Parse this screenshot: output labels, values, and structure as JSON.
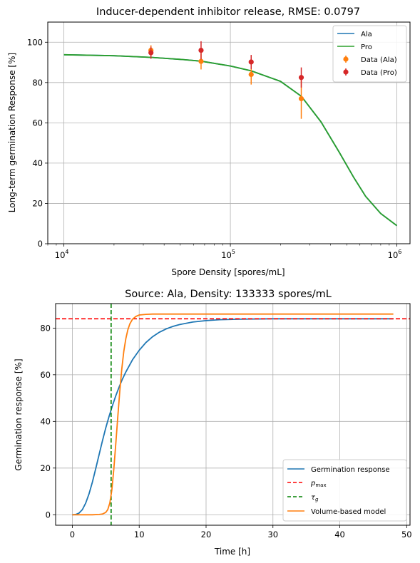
{
  "chart_data": [
    {
      "type": "line",
      "title": "Inducer-dependent inhibitor release, RMSE: 0.0797",
      "xlabel": "Spore Density [spores/mL]",
      "ylabel": "Long-term germination Response [%]",
      "xscale": "log",
      "xlim": [
        8000,
        1200000
      ],
      "ylim": [
        0,
        110
      ],
      "yticks": [
        "0",
        "20",
        "40",
        "60",
        "80",
        "100"
      ],
      "xticks": [
        {
          "value": 10000,
          "base": "10",
          "exp": "4"
        },
        {
          "value": 100000,
          "base": "10",
          "exp": "5"
        },
        {
          "value": 1000000,
          "base": "10",
          "exp": "6"
        }
      ],
      "grid": true,
      "legend_position": "top-right",
      "series": [
        {
          "name": "Ala",
          "kind": "line",
          "color": "#1f77b4",
          "x": [
            10000,
            20000,
            33333,
            50000,
            66667,
            100000,
            133333,
            200000,
            266667,
            350000,
            450000,
            550000,
            650000,
            800000,
            1000000
          ],
          "y": [
            93.8,
            93.3,
            92.5,
            91.5,
            90.6,
            88.2,
            85.8,
            80.6,
            73.2,
            60.5,
            45.5,
            33.0,
            23.5,
            15.0,
            9.0
          ]
        },
        {
          "name": "Pro",
          "kind": "line",
          "color": "#2ca02c",
          "x": [
            10000,
            20000,
            33333,
            50000,
            66667,
            100000,
            133333,
            200000,
            266667,
            350000,
            450000,
            550000,
            650000,
            800000,
            1000000
          ],
          "y": [
            93.8,
            93.3,
            92.5,
            91.5,
            90.6,
            88.2,
            85.8,
            80.6,
            73.2,
            60.5,
            45.5,
            33.0,
            23.5,
            15.0,
            9.0
          ]
        },
        {
          "name": "Data (Ala)",
          "kind": "errorbar",
          "color": "#ff7f0e",
          "x": [
            33333,
            66667,
            133333,
            266667
          ],
          "y": [
            96.0,
            90.5,
            84.0,
            72.0
          ],
          "err": [
            2.5,
            4.0,
            5.0,
            10.0
          ]
        },
        {
          "name": "Data (Pro)",
          "kind": "errorbar",
          "color": "#d62728",
          "x": [
            33333,
            66667,
            133333,
            266667
          ],
          "y": [
            94.8,
            96.0,
            90.2,
            82.5
          ],
          "err": [
            3.0,
            4.5,
            3.5,
            5.0
          ]
        }
      ]
    },
    {
      "type": "line",
      "title": "Source: Ala, Density: 133333 spores/mL",
      "xlabel": "Time [h]",
      "ylabel": "Germination response [%]",
      "xlim": [
        -2.5,
        50.5
      ],
      "ylim": [
        -4.5,
        90.5
      ],
      "xticks": [
        "0",
        "10",
        "20",
        "30",
        "40",
        "50"
      ],
      "yticks": [
        "0",
        "20",
        "40",
        "60",
        "80"
      ],
      "grid": true,
      "legend_position": "bottom-right",
      "series": [
        {
          "name": "Germination response",
          "kind": "line",
          "color": "#1f77b4",
          "x": [
            0,
            0.5,
            1,
            1.5,
            2,
            2.5,
            3,
            3.5,
            4,
            4.5,
            5,
            5.5,
            6,
            6.5,
            7,
            7.5,
            8,
            9,
            10,
            11,
            12,
            13,
            14,
            15,
            16,
            18,
            20,
            22,
            25,
            30,
            35,
            40,
            48
          ],
          "y": [
            0,
            0.1,
            0.7,
            2.2,
            5.0,
            9.0,
            14.0,
            19.8,
            25.8,
            31.6,
            37.2,
            42.2,
            46.8,
            51.0,
            54.8,
            58.2,
            61.2,
            66.4,
            70.5,
            73.8,
            76.3,
            78.2,
            79.6,
            80.7,
            81.5,
            82.6,
            83.2,
            83.6,
            83.8,
            84.0,
            84.0,
            84.0,
            84.0
          ]
        },
        {
          "name": "p_max",
          "kind": "hline",
          "color": "#ff0000",
          "y": 84.0
        },
        {
          "name": "τ_g",
          "kind": "vline",
          "color": "#008000",
          "x": 5.8
        },
        {
          "name": "Volume-based model",
          "kind": "line",
          "color": "#ff7f0e",
          "x": [
            0,
            1,
            2,
            3,
            4,
            4.5,
            5,
            5.3,
            5.6,
            5.9,
            6.2,
            6.5,
            6.8,
            7.1,
            7.4,
            7.7,
            8.0,
            8.3,
            8.6,
            9.0,
            9.5,
            10,
            11,
            12,
            14,
            20,
            30,
            40,
            48
          ],
          "y": [
            0,
            0,
            0,
            0,
            0.1,
            0.3,
            1.0,
            2.2,
            5.0,
            10.5,
            19.5,
            30.5,
            42.0,
            53.0,
            62.5,
            70.0,
            75.5,
            79.3,
            81.8,
            83.8,
            85.0,
            85.6,
            85.9,
            86.0,
            86.0,
            86.0,
            86.0,
            86.0,
            86.0
          ]
        }
      ]
    }
  ],
  "legend_labels": {
    "top": [
      "Ala",
      "Pro",
      "Data (Ala)",
      "Data (Pro)"
    ],
    "bottom_germination": "Germination response",
    "bottom_pmax_base": "p",
    "bottom_pmax_sub": "max",
    "bottom_tau_base": "τ",
    "bottom_tau_sub": "g",
    "bottom_volume": "Volume-based model"
  },
  "colors": {
    "ala_line": "#1f77b4",
    "pro_line": "#2ca02c",
    "data_ala": "#ff7f0e",
    "data_pro": "#d62728",
    "pmax": "#ff0000",
    "tau": "#008000",
    "volume": "#ff7f0e",
    "grid": "#b0b0b0"
  }
}
